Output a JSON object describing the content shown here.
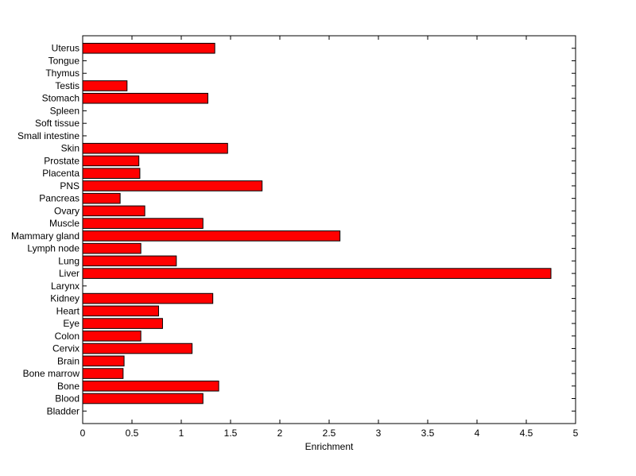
{
  "chart_data": {
    "type": "bar",
    "orientation": "horizontal",
    "categories": [
      "Bladder",
      "Blood",
      "Bone",
      "Bone marrow",
      "Brain",
      "Cervix",
      "Colon",
      "Eye",
      "Heart",
      "Kidney",
      "Larynx",
      "Liver",
      "Lung",
      "Lymph node",
      "Mammary gland",
      "Muscle",
      "Ovary",
      "Pancreas",
      "PNS",
      "Placenta",
      "Prostate",
      "Skin",
      "Small intestine",
      "Soft tissue",
      "Spleen",
      "Stomach",
      "Testis",
      "Thymus",
      "Tongue",
      "Uterus"
    ],
    "values": [
      0,
      1.22,
      1.38,
      0.41,
      0.42,
      1.11,
      0.59,
      0.81,
      0.77,
      1.32,
      0,
      4.75,
      0.95,
      0.59,
      2.61,
      1.22,
      0.63,
      0.38,
      1.82,
      0.58,
      0.57,
      1.47,
      0,
      0,
      0,
      1.27,
      0.45,
      0,
      0,
      1.34
    ],
    "xlabel": "Enrichment",
    "ylabel": "",
    "xlim": [
      0,
      5
    ],
    "x_ticks": [
      "0",
      "0.5",
      "1",
      "1.5",
      "2",
      "2.5",
      "3",
      "3.5",
      "4",
      "4.5",
      "5"
    ],
    "bar_color": "#ff0000",
    "bar_edge_color": "#000000",
    "grid": false,
    "legend": "none"
  }
}
